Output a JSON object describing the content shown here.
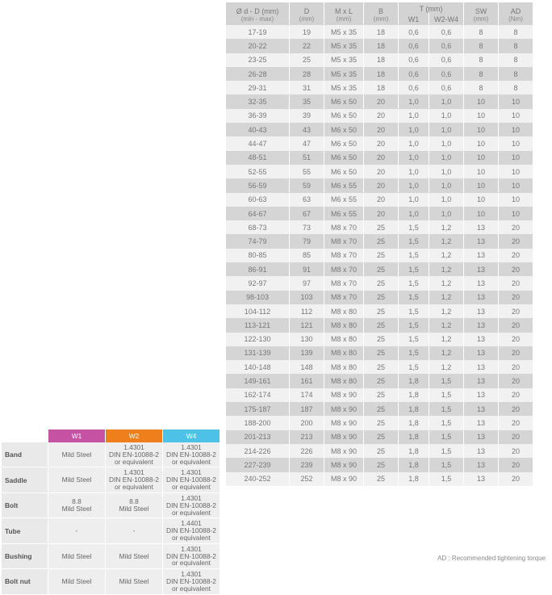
{
  "mainTable": {
    "headers": {
      "dD": "Ø d - D (mm)",
      "dD_unit": "(min - max)",
      "D": "D",
      "D_unit": "(mm)",
      "MxL": "M x L",
      "MxL_unit": "(mm)",
      "B": "B",
      "B_unit": "(mm)",
      "T": "T (mm)",
      "T_w1": "W1",
      "T_w2w4": "W2-W4",
      "SW": "SW",
      "SW_unit": "(mm)",
      "AD": "AD",
      "AD_unit": "(Nm)"
    },
    "rows": [
      {
        "dD": "17-19",
        "D": "19",
        "MxL": "M5 x 35",
        "B": "18",
        "T1": "0,6",
        "T2": "0,6",
        "SW": "8",
        "AD": "8"
      },
      {
        "dD": "20-22",
        "D": "22",
        "MxL": "M5 x 35",
        "B": "18",
        "T1": "0,6",
        "T2": "0,6",
        "SW": "8",
        "AD": "8"
      },
      {
        "dD": "23-25",
        "D": "25",
        "MxL": "M5 x 35",
        "B": "18",
        "T1": "0,6",
        "T2": "0,6",
        "SW": "8",
        "AD": "8"
      },
      {
        "dD": "26-28",
        "D": "28",
        "MxL": "M5 x 35",
        "B": "18",
        "T1": "0,6",
        "T2": "0,6",
        "SW": "8",
        "AD": "8"
      },
      {
        "dD": "29-31",
        "D": "31",
        "MxL": "M5 x 35",
        "B": "18",
        "T1": "0,6",
        "T2": "0,6",
        "SW": "8",
        "AD": "8"
      },
      {
        "dD": "32-35",
        "D": "35",
        "MxL": "M6 x 50",
        "B": "20",
        "T1": "1,0",
        "T2": "1,0",
        "SW": "10",
        "AD": "10"
      },
      {
        "dD": "36-39",
        "D": "39",
        "MxL": "M6 x 50",
        "B": "20",
        "T1": "1,0",
        "T2": "1,0",
        "SW": "10",
        "AD": "10"
      },
      {
        "dD": "40-43",
        "D": "43",
        "MxL": "M6 x 50",
        "B": "20",
        "T1": "1,0",
        "T2": "1,0",
        "SW": "10",
        "AD": "10"
      },
      {
        "dD": "44-47",
        "D": "47",
        "MxL": "M6 x 50",
        "B": "20",
        "T1": "1,0",
        "T2": "1,0",
        "SW": "10",
        "AD": "10"
      },
      {
        "dD": "48-51",
        "D": "51",
        "MxL": "M6 x 50",
        "B": "20",
        "T1": "1,0",
        "T2": "1,0",
        "SW": "10",
        "AD": "10"
      },
      {
        "dD": "52-55",
        "D": "55",
        "MxL": "M6 x 50",
        "B": "20",
        "T1": "1,0",
        "T2": "1,0",
        "SW": "10",
        "AD": "10"
      },
      {
        "dD": "56-59",
        "D": "59",
        "MxL": "M6 x 55",
        "B": "20",
        "T1": "1,0",
        "T2": "1,0",
        "SW": "10",
        "AD": "10"
      },
      {
        "dD": "60-63",
        "D": "63",
        "MxL": "M6 x 55",
        "B": "20",
        "T1": "1,0",
        "T2": "1,0",
        "SW": "10",
        "AD": "10"
      },
      {
        "dD": "64-67",
        "D": "67",
        "MxL": "M6 x 55",
        "B": "20",
        "T1": "1,0",
        "T2": "1,0",
        "SW": "10",
        "AD": "10"
      },
      {
        "dD": "68-73",
        "D": "73",
        "MxL": "M8 x 70",
        "B": "25",
        "T1": "1,5",
        "T2": "1,2",
        "SW": "13",
        "AD": "20"
      },
      {
        "dD": "74-79",
        "D": "79",
        "MxL": "M8 x 70",
        "B": "25",
        "T1": "1,5",
        "T2": "1,2",
        "SW": "13",
        "AD": "20"
      },
      {
        "dD": "80-85",
        "D": "85",
        "MxL": "M8 x 70",
        "B": "25",
        "T1": "1,5",
        "T2": "1,2",
        "SW": "13",
        "AD": "20"
      },
      {
        "dD": "86-91",
        "D": "91",
        "MxL": "M8 x 70",
        "B": "25",
        "T1": "1,5",
        "T2": "1,2",
        "SW": "13",
        "AD": "20"
      },
      {
        "dD": "92-97",
        "D": "97",
        "MxL": "M8 x 70",
        "B": "25",
        "T1": "1,5",
        "T2": "1,2",
        "SW": "13",
        "AD": "20"
      },
      {
        "dD": "98-103",
        "D": "103",
        "MxL": "M8 x 70",
        "B": "25",
        "T1": "1,5",
        "T2": "1,2",
        "SW": "13",
        "AD": "20"
      },
      {
        "dD": "104-112",
        "D": "112",
        "MxL": "M8 x 80",
        "B": "25",
        "T1": "1,5",
        "T2": "1,2",
        "SW": "13",
        "AD": "20"
      },
      {
        "dD": "113-121",
        "D": "121",
        "MxL": "M8 x 80",
        "B": "25",
        "T1": "1,5",
        "T2": "1,2",
        "SW": "13",
        "AD": "20"
      },
      {
        "dD": "122-130",
        "D": "130",
        "MxL": "M8 x 80",
        "B": "25",
        "T1": "1,5",
        "T2": "1,2",
        "SW": "13",
        "AD": "20"
      },
      {
        "dD": "131-139",
        "D": "139",
        "MxL": "M8 x 80",
        "B": "25",
        "T1": "1,5",
        "T2": "1,2",
        "SW": "13",
        "AD": "20"
      },
      {
        "dD": "140-148",
        "D": "148",
        "MxL": "M8 x 80",
        "B": "25",
        "T1": "1,5",
        "T2": "1,2",
        "SW": "13",
        "AD": "20"
      },
      {
        "dD": "149-161",
        "D": "161",
        "MxL": "M8 x 80",
        "B": "25",
        "T1": "1,8",
        "T2": "1,5",
        "SW": "13",
        "AD": "20"
      },
      {
        "dD": "162-174",
        "D": "174",
        "MxL": "M8 x 90",
        "B": "25",
        "T1": "1,8",
        "T2": "1,5",
        "SW": "13",
        "AD": "20"
      },
      {
        "dD": "175-187",
        "D": "187",
        "MxL": "M8 x 90",
        "B": "25",
        "T1": "1,8",
        "T2": "1,5",
        "SW": "13",
        "AD": "20"
      },
      {
        "dD": "188-200",
        "D": "200",
        "MxL": "M8 x 90",
        "B": "25",
        "T1": "1,8",
        "T2": "1,5",
        "SW": "13",
        "AD": "20"
      },
      {
        "dD": "201-213",
        "D": "213",
        "MxL": "M8 x 90",
        "B": "25",
        "T1": "1,8",
        "T2": "1,5",
        "SW": "13",
        "AD": "20"
      },
      {
        "dD": "214-226",
        "D": "226",
        "MxL": "M8 x 90",
        "B": "25",
        "T1": "1,8",
        "T2": "1,5",
        "SW": "13",
        "AD": "20"
      },
      {
        "dD": "227-239",
        "D": "239",
        "MxL": "M8 x 90",
        "B": "25",
        "T1": "1,8",
        "T2": "1,5",
        "SW": "13",
        "AD": "20"
      },
      {
        "dD": "240-252",
        "D": "252",
        "MxL": "M8 x 90",
        "B": "25",
        "T1": "1,8",
        "T2": "1,5",
        "SW": "13",
        "AD": "20"
      }
    ],
    "footnote": "AD :  Recommended tightening torque"
  },
  "materialTable": {
    "cols": {
      "w1": "W1",
      "w2": "W2",
      "w4": "W4"
    },
    "colors": {
      "w1": "#c552a3",
      "w2": "#ef7f1a",
      "w4": "#4dc2e6"
    },
    "rows": [
      {
        "label": "Band",
        "w1": "Mild Steel",
        "w2": "1.4301\nDIN EN-10088-2\nor equivalent",
        "w4": "1.4301\nDIN EN-10088-2\nor equivalent"
      },
      {
        "label": "Saddle",
        "w1": "Mild Steel",
        "w2": "1.4301\nDIN EN-10088-2\nor equivalent",
        "w4": "1.4301\nDIN EN-10088-2\nor equivalent"
      },
      {
        "label": "Bolt",
        "w1": "8.8\nMild Steel",
        "w2": "8.8\nMild Steel",
        "w4": "1.4301\nDIN EN-10088-2\nor equivalent"
      },
      {
        "label": "Tube",
        "w1": "-",
        "w2": "-",
        "w4": "1.4401\nDIN EN-10088-2\nor equivalent"
      },
      {
        "label": "Bushing",
        "w1": "Mild Steel",
        "w2": "Mild Steel",
        "w4": "1.4301\nDIN EN-10088-2\nor equivalent"
      },
      {
        "label": "Bolt nut",
        "w1": "Mild Steel",
        "w2": "Mild Steel",
        "w4": "1.4301\nDIN EN-10088-2\nor equivalent"
      }
    ]
  }
}
